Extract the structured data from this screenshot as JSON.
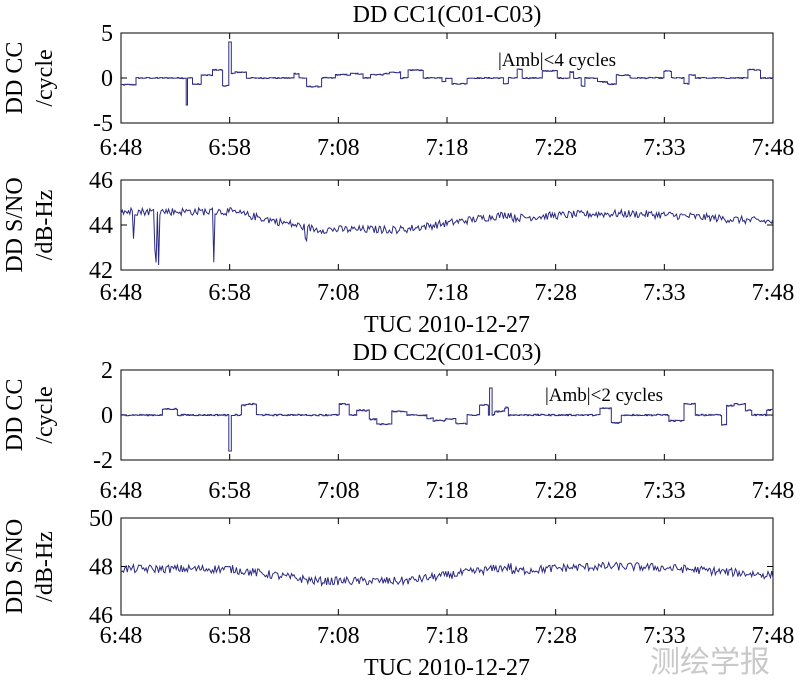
{
  "xticks": [
    "6:48",
    "6:58",
    "7:08",
    "7:18",
    "7:28",
    "7:33",
    "7:48"
  ],
  "watermark": "测绘学报",
  "chart_data": [
    {
      "type": "line",
      "title": "DD CC1(C01-C03)",
      "ylabel": [
        "DD CC",
        "/cycle"
      ],
      "xlabel": "",
      "ylim": [
        -5,
        5
      ],
      "yticks": [
        "5",
        "0",
        "-5"
      ],
      "grid": false,
      "annotation": "|Amb|<4 cycles",
      "color": "#2b2a80",
      "series": [
        {
          "name": "",
          "x_range": [
            "6:48",
            "7:48"
          ],
          "baseline": 0,
          "noise_pp": 1.0,
          "step_events": "frequent +-1 to +-2 cycle jumps",
          "spikes": [
            {
              "x": "6:54",
              "y": -3
            },
            {
              "x": "6:58",
              "y": 4
            }
          ]
        }
      ]
    },
    {
      "type": "line",
      "title": "",
      "ylabel": [
        "DD S/NO",
        "/dB-Hz"
      ],
      "xlabel": "TUC 2010-12-27",
      "ylim": [
        42,
        46
      ],
      "yticks": [
        "46",
        "44",
        "42"
      ],
      "grid": false,
      "color": "#2b2a80",
      "series": [
        {
          "name": "",
          "x_range": [
            "6:48",
            "7:48"
          ],
          "level_start": 44.6,
          "level_min": 43.8,
          "level_end": 44.3,
          "spikes_down_to": 42.2
        }
      ]
    },
    {
      "type": "line",
      "title": "DD CC2(C01-C03)",
      "ylabel": [
        "DD CC",
        "/cycle"
      ],
      "xlabel": "",
      "ylim": [
        -2,
        2
      ],
      "yticks": [
        "2",
        "0",
        "-2"
      ],
      "grid": false,
      "annotation": "|Amb|<2 cycles",
      "color": "#2b2a80",
      "series": [
        {
          "name": "",
          "x_range": [
            "6:48",
            "7:48"
          ],
          "baseline": 0,
          "noise_pp": 0.5,
          "step_events": "frequent +-0.5 to +-1 cycle jumps",
          "spikes": [
            {
              "x": "6:58",
              "y": -1.6
            },
            {
              "x": "7:22",
              "y": 1.2
            }
          ]
        }
      ]
    },
    {
      "type": "line",
      "title": "",
      "ylabel": [
        "DD S/NO",
        "/dB-Hz"
      ],
      "xlabel": "TUC 2010-12-27",
      "ylim": [
        46,
        50
      ],
      "yticks": [
        "50",
        "48",
        "46"
      ],
      "grid": false,
      "color": "#2b2a80",
      "series": [
        {
          "name": "",
          "x_range": [
            "6:48",
            "7:48"
          ],
          "level_start": 47.9,
          "level_min": 47.4,
          "level_end": 47.8
        }
      ]
    }
  ]
}
